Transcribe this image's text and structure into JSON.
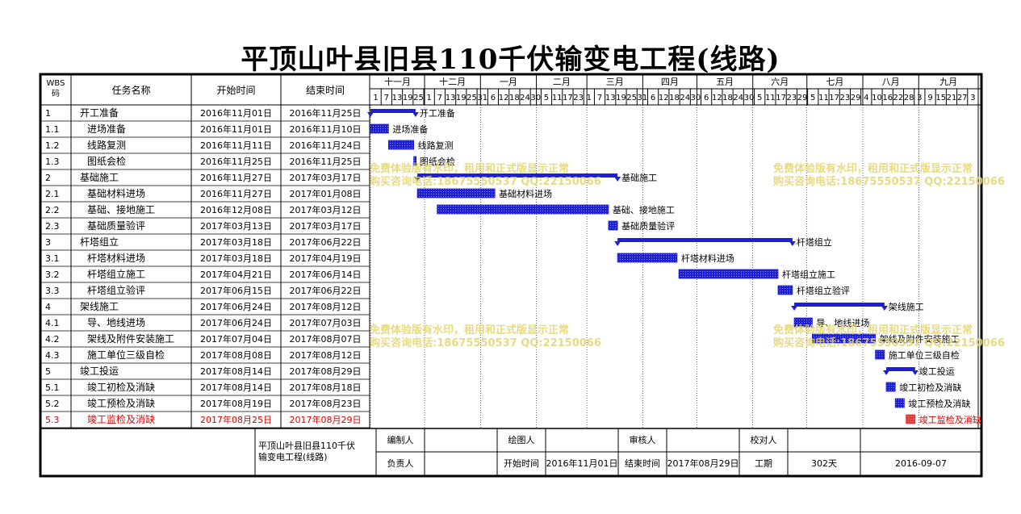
{
  "title": "平顶山叶县旧县110千伏输变电工程(线路)",
  "headers": {
    "wbs": "WBS\n码",
    "name": "任务名称",
    "start": "开始时间",
    "end": "结束时间"
  },
  "months": [
    {
      "label": "十一月",
      "start": "2016-11-01"
    },
    {
      "label": "十二月",
      "start": "2016-12-01"
    },
    {
      "label": "一月",
      "start": "2017-01-01"
    },
    {
      "label": "二月",
      "start": "2017-02-01"
    },
    {
      "label": "三月",
      "start": "2017-03-01"
    },
    {
      "label": "四月",
      "start": "2017-04-01"
    },
    {
      "label": "五月",
      "start": "2017-05-01"
    },
    {
      "label": "六月",
      "start": "2017-06-01"
    },
    {
      "label": "七月",
      "start": "2017-07-01"
    },
    {
      "label": "八月",
      "start": "2017-08-01"
    },
    {
      "label": "九月",
      "start": "2017-09-01"
    }
  ],
  "chart_data": {
    "type": "gantt",
    "x_range": [
      "2016-11-01",
      "2017-10-04"
    ],
    "day_ticks": [
      "1",
      "7",
      "13",
      "19",
      "25",
      "1",
      "7",
      "13",
      "19",
      "25",
      "31",
      "6",
      "12",
      "18",
      "24",
      "30",
      "5",
      "11",
      "17",
      "23",
      "1",
      "7",
      "13",
      "19",
      "25",
      "31",
      "6",
      "12",
      "18",
      "24",
      "30",
      "6",
      "12",
      "18",
      "24",
      "30",
      "5",
      "11",
      "17",
      "23",
      "29",
      "5",
      "11",
      "17",
      "23",
      "29",
      "4",
      "10",
      "16",
      "22",
      "28",
      "3",
      "9",
      "15",
      "21",
      "27",
      "3"
    ],
    "tasks": [
      {
        "wbs": "1",
        "name": "开工准备",
        "start_label": "2016年11月01日",
        "end_label": "2016年11月25日",
        "start": "2016-11-01",
        "end": "2016-11-25",
        "summary": true
      },
      {
        "wbs": "1.1",
        "name": "进场准备",
        "start_label": "2016年11月01日",
        "end_label": "2016年11月10日",
        "start": "2016-11-01",
        "end": "2016-11-10"
      },
      {
        "wbs": "1.2",
        "name": "线路复测",
        "start_label": "2016年11月11日",
        "end_label": "2016年11月24日",
        "start": "2016-11-11",
        "end": "2016-11-24"
      },
      {
        "wbs": "1.3",
        "name": "图纸会检",
        "start_label": "2016年11月25日",
        "end_label": "2016年11月25日",
        "start": "2016-11-25",
        "end": "2016-11-25"
      },
      {
        "wbs": "2",
        "name": "基础施工",
        "start_label": "2016年11月27日",
        "end_label": "2017年03月17日",
        "start": "2016-11-27",
        "end": "2017-03-17",
        "summary": true
      },
      {
        "wbs": "2.1",
        "name": "基础材料进场",
        "start_label": "2016年11月27日",
        "end_label": "2017年01月08日",
        "start": "2016-11-27",
        "end": "2017-01-08"
      },
      {
        "wbs": "2.2",
        "name": "基础、接地施工",
        "start_label": "2016年12月08日",
        "end_label": "2017年03月12日",
        "start": "2016-12-08",
        "end": "2017-03-12"
      },
      {
        "wbs": "2.3",
        "name": "基础质量验评",
        "start_label": "2017年03月13日",
        "end_label": "2017年03月17日",
        "start": "2017-03-13",
        "end": "2017-03-17"
      },
      {
        "wbs": "3",
        "name": "杆塔组立",
        "start_label": "2017年03月18日",
        "end_label": "2017年06月22日",
        "start": "2017-03-18",
        "end": "2017-06-22",
        "summary": true
      },
      {
        "wbs": "3.1",
        "name": "杆塔材料进场",
        "start_label": "2017年03月18日",
        "end_label": "2017年04月19日",
        "start": "2017-03-18",
        "end": "2017-04-19"
      },
      {
        "wbs": "3.2",
        "name": "杆塔组立施工",
        "start_label": "2017年04月21日",
        "end_label": "2017年06月14日",
        "start": "2017-04-21",
        "end": "2017-06-14"
      },
      {
        "wbs": "3.3",
        "name": "杆塔组立验评",
        "start_label": "2017年06月15日",
        "end_label": "2017年06月22日",
        "start": "2017-06-15",
        "end": "2017-06-22"
      },
      {
        "wbs": "4",
        "name": "架线施工",
        "start_label": "2017年06月24日",
        "end_label": "2017年08月12日",
        "start": "2017-06-24",
        "end": "2017-08-12",
        "summary": true
      },
      {
        "wbs": "4.1",
        "name": "导、地线进场",
        "start_label": "2017年06月24日",
        "end_label": "2017年07月03日",
        "start": "2017-06-24",
        "end": "2017-07-03"
      },
      {
        "wbs": "4.2",
        "name": "架线及附件安装施工",
        "start_label": "2017年07月04日",
        "end_label": "2017年08月07日",
        "start": "2017-07-04",
        "end": "2017-08-07"
      },
      {
        "wbs": "4.3",
        "name": "施工单位三级自检",
        "start_label": "2017年08月08日",
        "end_label": "2017年08月12日",
        "start": "2017-08-08",
        "end": "2017-08-12"
      },
      {
        "wbs": "5",
        "name": "竣工投运",
        "start_label": "2017年08月14日",
        "end_label": "2017年08月29日",
        "start": "2017-08-14",
        "end": "2017-08-29",
        "summary": true
      },
      {
        "wbs": "5.1",
        "name": "竣工初检及消缺",
        "start_label": "2017年08月14日",
        "end_label": "2017年08月18日",
        "start": "2017-08-14",
        "end": "2017-08-18"
      },
      {
        "wbs": "5.2",
        "name": "竣工预检及消缺",
        "start_label": "2017年08月19日",
        "end_label": "2017年08月23日",
        "start": "2017-08-19",
        "end": "2017-08-23"
      },
      {
        "wbs": "5.3",
        "name": "竣工监检及消缺",
        "start_label": "2017年08月25日",
        "end_label": "2017年08月29日",
        "start": "2017-08-25",
        "end": "2017-08-29",
        "highlight": true
      }
    ]
  },
  "colors": {
    "bar": "#1f1fd6",
    "highlight_bar": "#e23b3b",
    "highlight_text": "#e00000",
    "grid": "#000000"
  },
  "footer": {
    "project": "平顶山叶县旧县110千伏输变电工程(线路)",
    "compiler_label": "编制人",
    "drafter_label": "绘图人",
    "reviewer_label": "审核人",
    "checker_label": "校对人",
    "owner_label": "负责人",
    "start_label": "开始时间",
    "start_value": "2016年11月01日",
    "end_label": "结束时间",
    "end_value": "2017年08月29日",
    "duration_label": "工期",
    "duration_value": "302天",
    "date_value": "2016-09-07"
  },
  "watermark": {
    "line1": "免费体验版有水印，租用和正式版显示正常",
    "line2": "购买咨询电话:18675550537 QQ:22150066"
  }
}
